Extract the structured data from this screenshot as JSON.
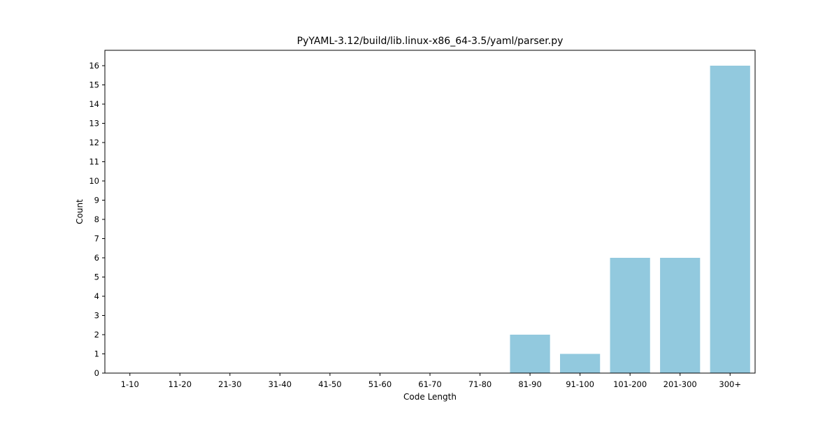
{
  "chart_data": {
    "type": "bar",
    "title": "PyYAML-3.12/build/lib.linux-x86_64-3.5/yaml/parser.py",
    "xlabel": "Code Length",
    "ylabel": "Count",
    "categories": [
      "1-10",
      "11-20",
      "21-30",
      "31-40",
      "41-50",
      "51-60",
      "61-70",
      "71-80",
      "81-90",
      "91-100",
      "101-200",
      "201-300",
      "300+"
    ],
    "values": [
      0,
      0,
      0,
      0,
      0,
      0,
      0,
      0,
      2,
      1,
      6,
      6,
      16
    ],
    "ylim": [
      0,
      16.8
    ],
    "yticks": [
      0,
      1,
      2,
      3,
      4,
      5,
      6,
      7,
      8,
      9,
      10,
      11,
      12,
      13,
      14,
      15,
      16
    ],
    "bar_color": "#92c9de",
    "grid": false,
    "legend": "none"
  }
}
